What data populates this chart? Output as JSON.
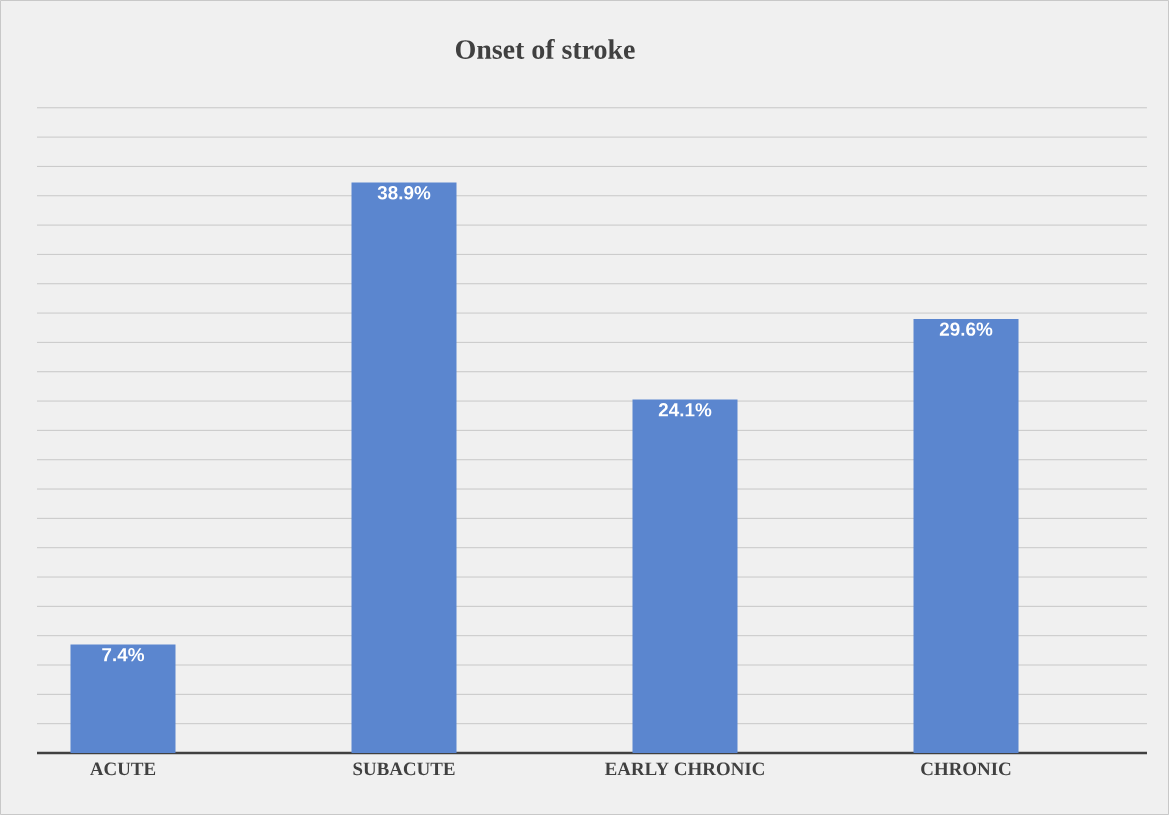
{
  "chart_data": {
    "type": "bar",
    "title": "Onset of stroke",
    "categories": [
      "ACUTE",
      "SUBACUTE",
      "EARLY CHRONIC",
      "CHRONIC"
    ],
    "values": [
      7.4,
      38.9,
      24.1,
      29.6
    ],
    "value_labels": [
      "7.4%",
      "38.9%",
      "24.1%",
      "29.6%"
    ],
    "color": "#5b86cf",
    "grid": "y",
    "tick_labels": "x"
  }
}
